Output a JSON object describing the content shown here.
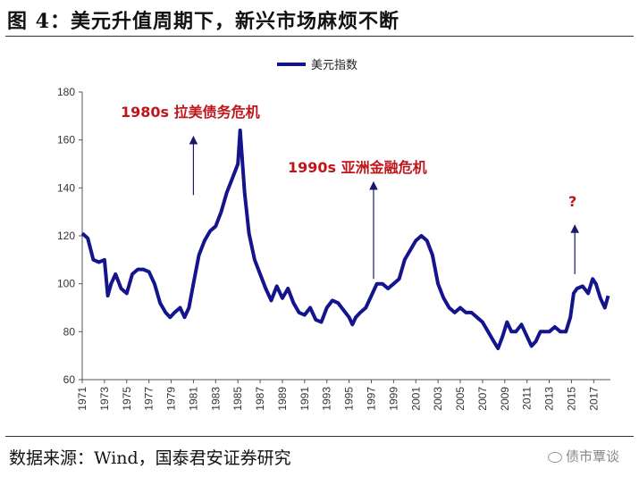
{
  "title": "图 4：美元升值周期下，新兴市场麻烦不断",
  "source": "数据来源：Wind，国泰君安证券研究",
  "watermark": "债市覃谈",
  "chart_data": {
    "type": "line",
    "title": "",
    "xlabel": "",
    "ylabel": "",
    "ylim": [
      60,
      180
    ],
    "yticks": [
      60,
      80,
      100,
      120,
      140,
      160,
      180
    ],
    "xlim": [
      1971,
      2018.5
    ],
    "xticks": [
      "1971",
      "1973",
      "1975",
      "1977",
      "1979",
      "1981",
      "1983",
      "1985",
      "1987",
      "1989",
      "1991",
      "1993",
      "1995",
      "1997",
      "1999",
      "2001",
      "2003",
      "2005",
      "2007",
      "2009",
      "2011",
      "2013",
      "2015",
      "2017"
    ],
    "legend": "top-center",
    "grid": false,
    "series": [
      {
        "name": "美元指数",
        "color": "#14148c",
        "x": [
          1971.0,
          1971.5,
          1972.0,
          1972.5,
          1973.0,
          1973.3,
          1973.6,
          1974.0,
          1974.5,
          1975.0,
          1975.5,
          1976.0,
          1976.5,
          1977.0,
          1977.5,
          1978.0,
          1978.5,
          1978.9,
          1979.3,
          1979.8,
          1980.2,
          1980.6,
          1981.0,
          1981.5,
          1982.0,
          1982.5,
          1983.0,
          1983.5,
          1984.0,
          1984.5,
          1985.0,
          1985.2,
          1985.6,
          1986.0,
          1986.5,
          1987.0,
          1987.5,
          1988.0,
          1988.5,
          1989.0,
          1989.5,
          1990.0,
          1990.5,
          1991.0,
          1991.5,
          1992.0,
          1992.5,
          1993.0,
          1993.5,
          1994.0,
          1994.5,
          1995.0,
          1995.3,
          1995.6,
          1996.0,
          1996.5,
          1997.0,
          1997.5,
          1998.0,
          1998.5,
          1999.0,
          1999.5,
          2000.0,
          2000.5,
          2001.0,
          2001.5,
          2002.0,
          2002.5,
          2003.0,
          2003.5,
          2004.0,
          2004.5,
          2005.0,
          2005.5,
          2006.0,
          2006.5,
          2007.0,
          2007.5,
          2008.0,
          2008.4,
          2008.8,
          2009.2,
          2009.6,
          2010.0,
          2010.5,
          2011.0,
          2011.4,
          2011.8,
          2012.2,
          2012.6,
          2013.0,
          2013.5,
          2014.0,
          2014.5,
          2014.9,
          2015.2,
          2015.5,
          2016.0,
          2016.5,
          2016.9,
          2017.2,
          2017.6,
          2018.0,
          2018.3
        ],
        "values": [
          121,
          119,
          110,
          109,
          110,
          95,
          100,
          104,
          98,
          96,
          104,
          106,
          106,
          105,
          100,
          92,
          88,
          86,
          88,
          90,
          86,
          90,
          100,
          112,
          118,
          122,
          124,
          130,
          138,
          144,
          150,
          164,
          138,
          121,
          110,
          104,
          98,
          93,
          99,
          94,
          98,
          92,
          88,
          87,
          90,
          85,
          84,
          90,
          93,
          92,
          89,
          86,
          83,
          86,
          88,
          90,
          95,
          100,
          100,
          98,
          100,
          102,
          110,
          114,
          118,
          120,
          118,
          112,
          100,
          94,
          90,
          88,
          90,
          88,
          88,
          86,
          84,
          80,
          76,
          73,
          78,
          84,
          80,
          80,
          83,
          78,
          74,
          76,
          80,
          80,
          80,
          82,
          80,
          80,
          86,
          96,
          98,
          99,
          96,
          102,
          100,
          94,
          90,
          95
        ]
      }
    ],
    "annotations": [
      {
        "text": "1980s  拉美债务危机",
        "arrow_x": 1981.0,
        "arrow_from_y": 137,
        "arrow_to_y": 160
      },
      {
        "text": "1990s  亚洲金融危机",
        "arrow_x": 1997.2,
        "arrow_from_y": 102,
        "arrow_to_y": 141
      },
      {
        "text": "?",
        "arrow_x": 2015.3,
        "arrow_from_y": 104,
        "arrow_to_y": 123
      }
    ]
  }
}
